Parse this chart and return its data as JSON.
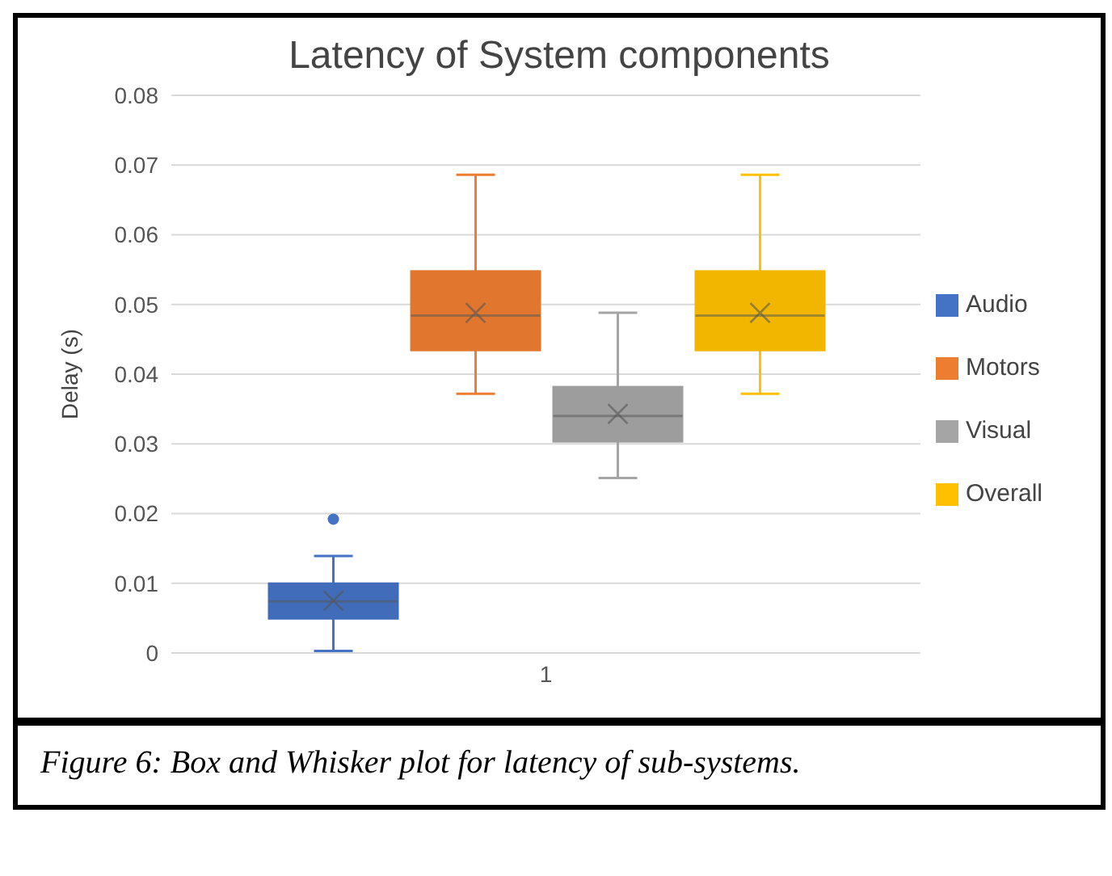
{
  "chart_data": {
    "type": "box",
    "title": "Latency of System components",
    "ylabel": "Delay (s)",
    "categories": [
      "1"
    ],
    "series": [
      {
        "name": "Audio",
        "color": "#4472c4",
        "boxes": [
          {
            "low": 0.0003,
            "q1": 0.0049,
            "median": 0.0074,
            "q3": 0.01,
            "high": 0.0139,
            "mean": 0.0075,
            "outliers": [
              0.0192
            ]
          }
        ]
      },
      {
        "name": "Motors",
        "color": "#ed7d31",
        "boxes": [
          {
            "low": 0.0372,
            "q1": 0.0434,
            "median": 0.0484,
            "q3": 0.0548,
            "high": 0.0686,
            "mean": 0.0488
          }
        ]
      },
      {
        "name": "Visual",
        "color": "#a5a5a5",
        "boxes": [
          {
            "low": 0.0251,
            "q1": 0.0303,
            "median": 0.034,
            "q3": 0.0382,
            "high": 0.0488,
            "mean": 0.0343
          }
        ]
      },
      {
        "name": "Overall",
        "color": "#ffc000",
        "boxes": [
          {
            "low": 0.0372,
            "q1": 0.0434,
            "median": 0.0484,
            "q3": 0.0548,
            "high": 0.0686,
            "mean": 0.0488
          }
        ]
      }
    ],
    "ylim": [
      0,
      0.08
    ],
    "yticks": [
      0,
      0.01,
      0.02,
      0.03,
      0.04,
      0.05,
      0.06,
      0.07,
      0.08
    ],
    "grid": "y",
    "legend": "right",
    "annotations": [
      "Figure 6: Box and Whisker plot for latency of sub-systems."
    ]
  }
}
